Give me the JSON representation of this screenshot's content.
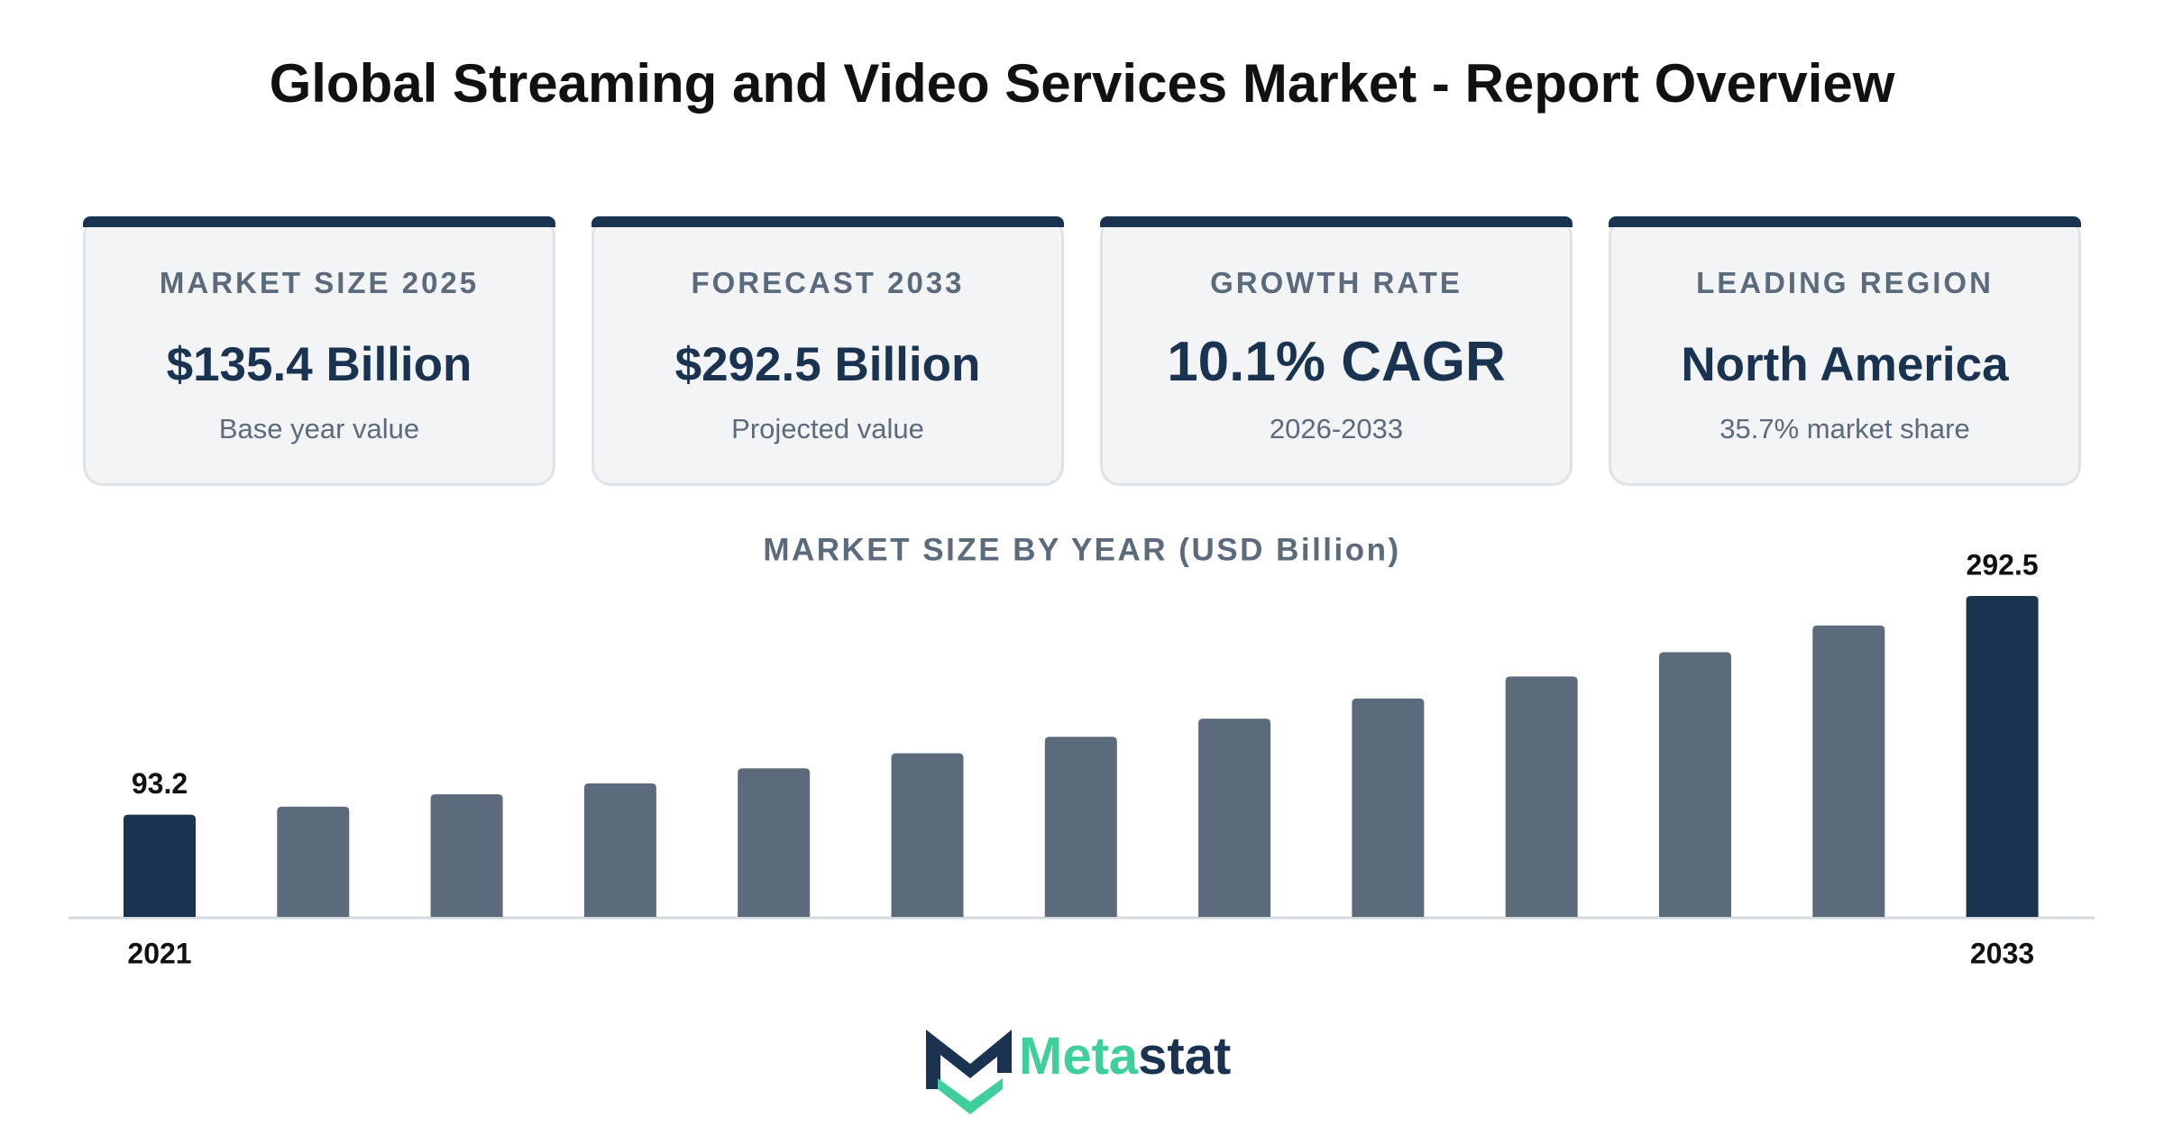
{
  "header": {
    "title": "Global Streaming and Video Services Market - Report Overview"
  },
  "cards": [
    {
      "label": "MARKET SIZE 2025",
      "value": "$135.4 Billion",
      "note": "Base year value"
    },
    {
      "label": "FORECAST 2033",
      "value": "$292.5 Billion",
      "note": "Projected value"
    },
    {
      "label": "GROWTH RATE",
      "value": "10.1% CAGR",
      "note": "2026-2033"
    },
    {
      "label": "LEADING REGION",
      "value": "North America",
      "note": "35.7% market share"
    }
  ],
  "chart_data": {
    "type": "bar",
    "title": "MARKET SIZE BY YEAR (USD Billion)",
    "categories": [
      "2021",
      null,
      null,
      null,
      null,
      null,
      null,
      null,
      null,
      null,
      null,
      null,
      "2033"
    ],
    "values": [
      93.2,
      100.4,
      111.7,
      121.7,
      135.4,
      149.1,
      164.1,
      180.7,
      199.0,
      219.1,
      241.2,
      265.6,
      292.5
    ],
    "value_labels": [
      "93.2",
      null,
      null,
      null,
      null,
      null,
      null,
      null,
      null,
      null,
      null,
      null,
      "292.5"
    ],
    "colors": [
      "#1a3350",
      "#5b6b7c",
      "#5b6b7c",
      "#5b6b7c",
      "#5b6b7c",
      "#5b6b7c",
      "#5b6b7c",
      "#5b6b7c",
      "#5b6b7c",
      "#5b6b7c",
      "#5b6b7c",
      "#5b6b7c",
      "#1a3350"
    ]
  },
  "logo": [
    "Meta",
    "stat"
  ]
}
